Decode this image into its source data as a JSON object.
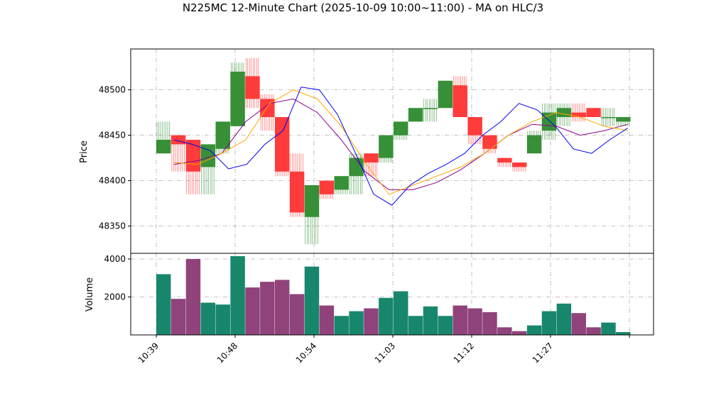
{
  "chart_data": {
    "type": "candlestick",
    "title": "N225MC 12-Minute Chart (2025-10-09 10:00~11:00) - MA on HLC/3",
    "price_panel": {
      "ylabel": "Price",
      "ylim": [
        48320,
        48545
      ],
      "yticks": [
        48350,
        48400,
        48450,
        48500
      ]
    },
    "volume_panel": {
      "ylabel": "Volume",
      "ylim": [
        0,
        4300
      ],
      "yticks": [
        2000,
        4000
      ]
    },
    "xlabels": [
      "10:39",
      "10:48",
      "10:54",
      "11:03",
      "11:12",
      "11:27"
    ],
    "grid": true,
    "colors": {
      "up": "#2e8b2e",
      "down": "#ff3333",
      "volume_up": "#138a5e",
      "volume_down": "#9c3d6e",
      "volume_stripe": "#3a6fd8",
      "ma_fast": "#0000ee",
      "ma_mid": "#ffa500",
      "ma_slow": "#8b008b"
    },
    "bars": [
      {
        "open": 48430,
        "high": 48465,
        "low": 48430,
        "close": 48445,
        "volume": 3200
      },
      {
        "open": 48450,
        "high": 48450,
        "low": 48410,
        "close": 48440,
        "volume": 1900
      },
      {
        "open": 48445,
        "high": 48445,
        "low": 48385,
        "close": 48410,
        "volume": 4000
      },
      {
        "open": 48415,
        "high": 48440,
        "low": 48385,
        "close": 48440,
        "volume": 1700
      },
      {
        "open": 48435,
        "high": 48465,
        "low": 48430,
        "close": 48465,
        "volume": 1600
      },
      {
        "open": 48460,
        "high": 48530,
        "low": 48460,
        "close": 48520,
        "volume": 4150
      },
      {
        "open": 48515,
        "high": 48535,
        "low": 48480,
        "close": 48490,
        "volume": 2500
      },
      {
        "open": 48490,
        "high": 48495,
        "low": 48455,
        "close": 48470,
        "volume": 2800
      },
      {
        "open": 48470,
        "high": 48470,
        "low": 48405,
        "close": 48410,
        "volume": 2900
      },
      {
        "open": 48410,
        "high": 48430,
        "low": 48360,
        "close": 48365,
        "volume": 2150
      },
      {
        "open": 48360,
        "high": 48395,
        "low": 48330,
        "close": 48395,
        "volume": 3600
      },
      {
        "open": 48400,
        "high": 48400,
        "low": 48380,
        "close": 48385,
        "volume": 1550
      },
      {
        "open": 48390,
        "high": 48405,
        "low": 48385,
        "close": 48405,
        "volume": 1000
      },
      {
        "open": 48405,
        "high": 48430,
        "low": 48385,
        "close": 48425,
        "volume": 1250
      },
      {
        "open": 48430,
        "high": 48430,
        "low": 48405,
        "close": 48420,
        "volume": 1400
      },
      {
        "open": 48425,
        "high": 48450,
        "low": 48420,
        "close": 48450,
        "volume": 1950
      },
      {
        "open": 48450,
        "high": 48465,
        "low": 48445,
        "close": 48465,
        "volume": 2300
      },
      {
        "open": 48465,
        "high": 48480,
        "low": 48465,
        "close": 48480,
        "volume": 1000
      },
      {
        "open": 48480,
        "high": 48490,
        "low": 48465,
        "close": 48480,
        "volume": 1500
      },
      {
        "open": 48480,
        "high": 48510,
        "low": 48480,
        "close": 48510,
        "volume": 1000
      },
      {
        "open": 48505,
        "high": 48515,
        "low": 48470,
        "close": 48470,
        "volume": 1550
      },
      {
        "open": 48470,
        "high": 48470,
        "low": 48440,
        "close": 48450,
        "volume": 1400
      },
      {
        "open": 48450,
        "high": 48450,
        "low": 48430,
        "close": 48435,
        "volume": 1200
      },
      {
        "open": 48425,
        "high": 48425,
        "low": 48415,
        "close": 48420,
        "volume": 400
      },
      {
        "open": 48420,
        "high": 48420,
        "low": 48410,
        "close": 48415,
        "volume": 200
      },
      {
        "open": 48430,
        "high": 48455,
        "low": 48430,
        "close": 48450,
        "volume": 500
      },
      {
        "open": 48455,
        "high": 48485,
        "low": 48445,
        "close": 48475,
        "volume": 1250
      },
      {
        "open": 48470,
        "high": 48485,
        "low": 48460,
        "close": 48480,
        "volume": 1650
      },
      {
        "open": 48475,
        "high": 48485,
        "low": 48465,
        "close": 48470,
        "volume": 1150
      },
      {
        "open": 48480,
        "high": 48480,
        "low": 48470,
        "close": 48470,
        "volume": 400
      },
      {
        "open": 48470,
        "high": 48480,
        "low": 48460,
        "close": 48470,
        "volume": 650
      },
      {
        "open": 48465,
        "high": 48470,
        "low": 48460,
        "close": 48470,
        "volume": 150
      }
    ],
    "ma_fast": [
      48445,
      48440,
      48433,
      48413,
      48418,
      48440,
      48455,
      48503,
      48500,
      48473,
      48430,
      48385,
      48373,
      48395,
      48408,
      48418,
      48430,
      48450,
      48465,
      48485,
      48478,
      48460,
      48435,
      48430,
      48445,
      48458
    ],
    "ma_mid": [
      48420,
      48418,
      48430,
      48445,
      48485,
      48500,
      48490,
      48460,
      48420,
      48385,
      48395,
      48405,
      48415,
      48430,
      48450,
      48465,
      48475,
      48470,
      48460,
      48455
    ],
    "ma_slow": [
      48418,
      48422,
      48430,
      48465,
      48485,
      48490,
      48475,
      48445,
      48410,
      48390,
      48390,
      48398,
      48412,
      48430,
      48450,
      48462,
      48460,
      48450,
      48455,
      48462
    ]
  }
}
